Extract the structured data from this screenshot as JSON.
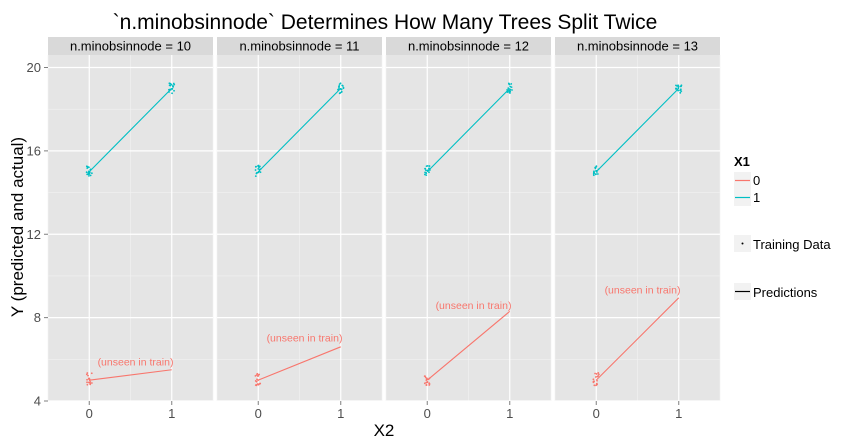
{
  "chart_data": {
    "type": "line",
    "title": "`n.minobsinnode` Determines How Many Trees Split Twice",
    "xlabel": "X2",
    "ylabel": "Y (predicted and actual)",
    "x_ticks": [
      "0",
      "1"
    ],
    "y_ticks": [
      "4",
      "8",
      "12",
      "16",
      "20"
    ],
    "xlim": [
      -0.5,
      1.5
    ],
    "ylim": [
      4,
      20.6
    ],
    "grid": true,
    "legend_placement": "right",
    "legend": {
      "title": "X1",
      "entries": [
        {
          "label": "0",
          "color": "#F8766D"
        },
        {
          "label": "1",
          "color": "#00BFC4"
        }
      ],
      "training_label": "Training Data",
      "predictions_label": "Predictions"
    },
    "annotation_text": "(unseen in train)",
    "colors": {
      "x1_0": "#F8766D",
      "x1_1": "#00BFC4",
      "panel": "#e5e5e5",
      "grid": "#ffffff",
      "strip": "#d9d9d9"
    },
    "panels": [
      {
        "label": "n.minobsinnode = 10",
        "series": [
          {
            "name": "0",
            "x": [
              0,
              1
            ],
            "y": [
              5.0,
              5.5
            ]
          },
          {
            "name": "1",
            "x": [
              0,
              1
            ],
            "y": [
              15.0,
              19.0
            ]
          }
        ],
        "annotation_y": 5.9
      },
      {
        "label": "n.minobsinnode = 11",
        "series": [
          {
            "name": "0",
            "x": [
              0,
              1
            ],
            "y": [
              5.0,
              6.6
            ]
          },
          {
            "name": "1",
            "x": [
              0,
              1
            ],
            "y": [
              15.0,
              19.0
            ]
          }
        ],
        "annotation_y": 7.05
      },
      {
        "label": "n.minobsinnode = 12",
        "series": [
          {
            "name": "0",
            "x": [
              0,
              1
            ],
            "y": [
              5.0,
              8.3
            ]
          },
          {
            "name": "1",
            "x": [
              0,
              1
            ],
            "y": [
              15.0,
              19.0
            ]
          }
        ],
        "annotation_y": 8.6
      },
      {
        "label": "n.minobsinnode = 13",
        "series": [
          {
            "name": "0",
            "x": [
              0,
              1
            ],
            "y": [
              5.0,
              8.95
            ]
          },
          {
            "name": "1",
            "x": [
              0,
              1
            ],
            "y": [
              15.0,
              19.0
            ]
          }
        ],
        "annotation_y": 9.35
      }
    ],
    "training_data": {
      "x1_0": {
        "x": 0,
        "y_range": [
          4.75,
          5.35
        ]
      },
      "x1_1_at_0": {
        "x": 0,
        "y_range": [
          14.75,
          15.3
        ]
      },
      "x1_1_at_1": {
        "x": 1,
        "y_range": [
          18.75,
          19.25
        ]
      }
    }
  }
}
